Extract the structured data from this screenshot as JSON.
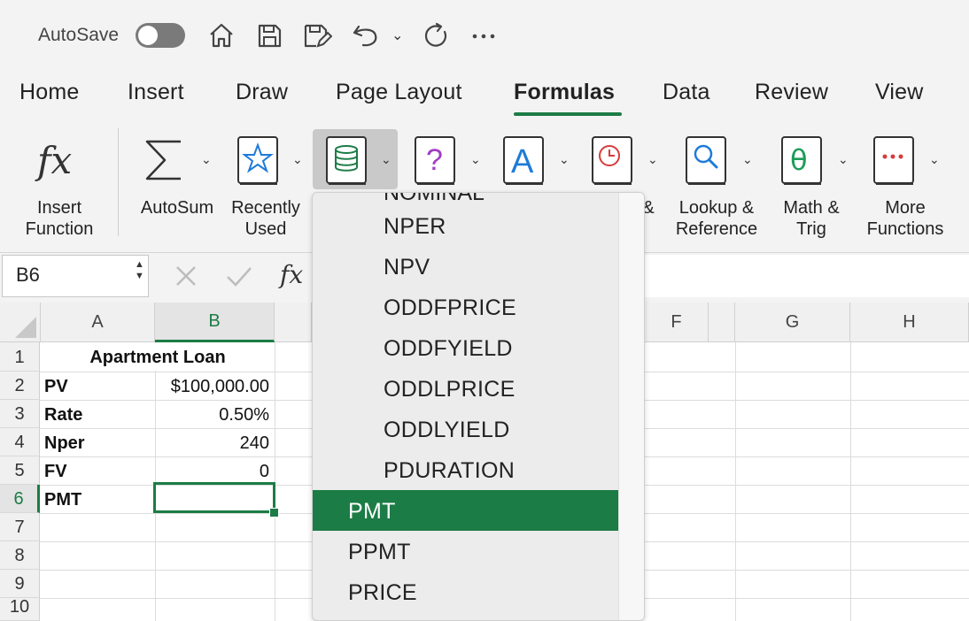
{
  "titlebar": {
    "autosave_label": "AutoSave",
    "icons": [
      "home-icon",
      "save-icon",
      "save-as-icon",
      "undo-icon",
      "redo-icon",
      "more-icon"
    ]
  },
  "tabs": [
    "Home",
    "Insert",
    "Draw",
    "Page Layout",
    "Formulas",
    "Data",
    "Review",
    "View"
  ],
  "active_tab": "Formulas",
  "ribbon": {
    "insert_function": [
      "Insert",
      "Function"
    ],
    "autosum": "AutoSum",
    "recently_used": [
      "Recently",
      "Used"
    ],
    "lookup": [
      "Lookup &",
      "Reference"
    ],
    "math": [
      "Math &",
      "Trig"
    ],
    "more": [
      "More",
      "Functions"
    ],
    "partial_label": "&"
  },
  "formula_bar": {
    "name_box": "B6",
    "fx": "fx",
    "formula": ""
  },
  "grid": {
    "columns": [
      "A",
      "B",
      "F",
      "G",
      "H"
    ],
    "rows": [
      "1",
      "2",
      "3",
      "4",
      "5",
      "6",
      "7",
      "8",
      "9",
      "10"
    ],
    "title": "Apartment Loan",
    "labels": [
      "PV",
      "Rate",
      "Nper",
      "FV",
      "PMT"
    ],
    "values": [
      "$100,000.00",
      "0.50%",
      "240",
      "0",
      ""
    ]
  },
  "dropdown": {
    "items": [
      "NPER",
      "NPV",
      "ODDFPRICE",
      "ODDFYIELD",
      "ODDLPRICE",
      "ODDLYIELD",
      "PDURATION",
      "PMT",
      "PPMT",
      "PRICE"
    ],
    "selected": "PMT"
  },
  "colors": {
    "accent": "#1c7c45"
  }
}
